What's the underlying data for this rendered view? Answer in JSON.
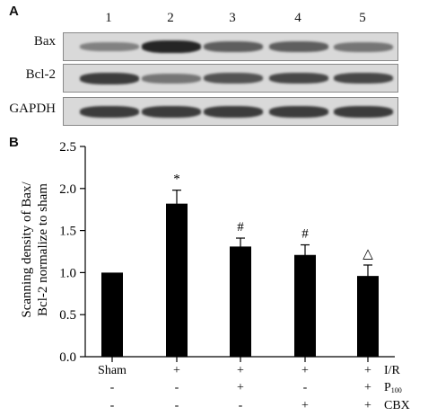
{
  "panel_a_label": "A",
  "panel_b_label": "B",
  "blot": {
    "lanes": [
      "1",
      "2",
      "3",
      "4",
      "5"
    ],
    "rows": [
      {
        "label": "Bax",
        "intensity": [
          0.55,
          0.95,
          0.7,
          0.7,
          0.6
        ]
      },
      {
        "label": "Bcl-2",
        "intensity": [
          0.85,
          0.6,
          0.75,
          0.8,
          0.8
        ]
      },
      {
        "label": "GAPDH",
        "intensity": [
          0.85,
          0.85,
          0.85,
          0.85,
          0.85
        ]
      }
    ]
  },
  "chart_data": {
    "type": "bar",
    "ylabel_line1": "Scanning density of Bax/",
    "ylabel_line2": "Bcl-2 normalize to sham",
    "ylim": [
      0.0,
      2.5
    ],
    "yticks": [
      "0.0",
      "0.5",
      "1.0",
      "1.5",
      "2.0",
      "2.5"
    ],
    "categories": [
      "Sham",
      "I/R",
      "I/R+P100",
      "I/R+P100+CBX",
      "I/R+CBX+P100"
    ],
    "values": [
      1.0,
      1.82,
      1.31,
      1.21,
      0.96
    ],
    "errors": [
      0.0,
      0.16,
      0.1,
      0.12,
      0.13
    ],
    "significance": [
      "",
      "*",
      "#",
      "#",
      "△"
    ],
    "bar_color": "#000000",
    "treatment_table": {
      "first_col_label": "Sham",
      "rows": [
        {
          "label": "I/R",
          "sub": "",
          "marks": [
            "+",
            "+",
            "+",
            "+"
          ]
        },
        {
          "label": "P",
          "sub": "100",
          "marks": [
            "-",
            "+",
            "-",
            "+"
          ]
        },
        {
          "label": "CBX",
          "sub": "",
          "marks": [
            "-",
            "-",
            "+",
            "+"
          ]
        }
      ]
    }
  }
}
